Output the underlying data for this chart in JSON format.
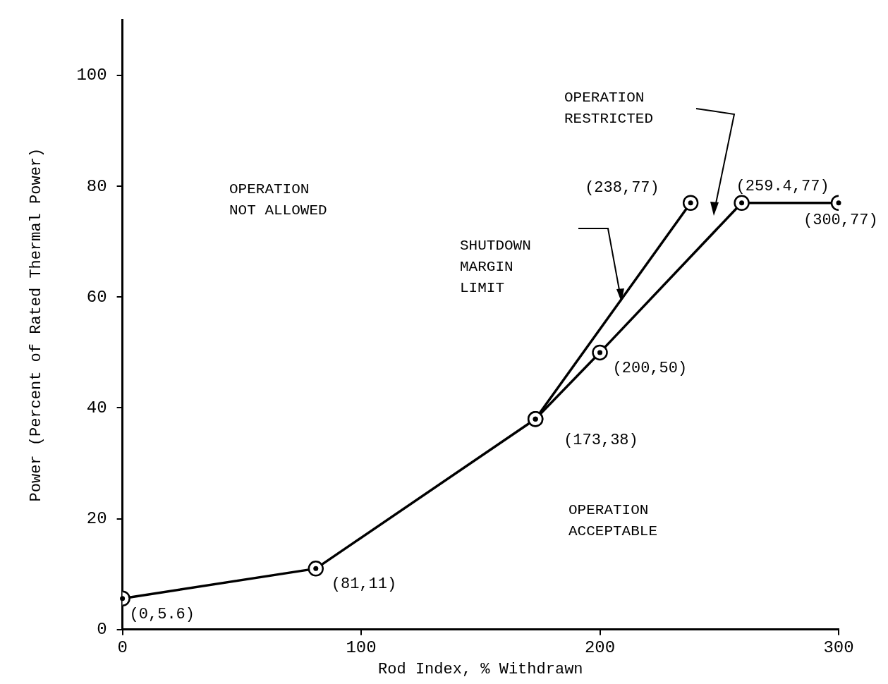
{
  "chart_data": {
    "type": "line",
    "xlabel": "Rod Index, % Withdrawn",
    "ylabel": "Power (Percent of Rated Thermal Power)",
    "xlim": [
      0,
      300
    ],
    "xticks": [
      0,
      100,
      200,
      300
    ],
    "ylim": [
      0,
      110
    ],
    "yticks": [
      0,
      20,
      40,
      60,
      80,
      100
    ],
    "marker": "circle",
    "line_style": "solid",
    "grid": false,
    "legend": false,
    "series": [
      {
        "color": "#000000",
        "x": [
          0,
          81,
          173,
          238
        ],
        "values": [
          5.6,
          11,
          38,
          77
        ]
      },
      {
        "color": "#000000",
        "x": [
          173,
          200,
          259.4,
          300
        ],
        "values": [
          38,
          50,
          77,
          77
        ]
      }
    ],
    "annotations": [
      "OPERATION\nNOT ALLOWED",
      "SHUTDOWN\nMARGIN\nLIMIT",
      "OPERATION\nRESTRICTED",
      "OPERATION\nACCEPTABLE",
      {
        "text": "(0,5.6)",
        "x": 0,
        "y": 5.6
      },
      {
        "text": "(81,11)",
        "x": 81,
        "y": 11
      },
      {
        "text": "(173,38)",
        "x": 173,
        "y": 38
      },
      {
        "text": "(200,50)",
        "x": 200,
        "y": 50
      },
      {
        "text": "(238,77)",
        "x": 238,
        "y": 77
      },
      {
        "text": "(259.4,77)",
        "x": 259.4,
        "y": 77
      },
      {
        "text": "(300,77)",
        "x": 300,
        "y": 77
      }
    ]
  }
}
